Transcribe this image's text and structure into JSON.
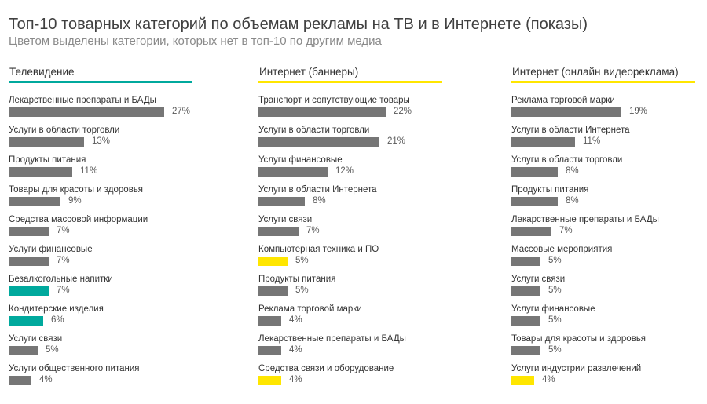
{
  "chart_data": {
    "type": "bar",
    "title": "Топ-10 товарных категорий по объемам рекламы на ТВ и в Интернете (показы)",
    "subtitle": "Цветом выделены категории, которых нет в топ-10 по другим медиа",
    "colors": {
      "default": "#767676"
    },
    "panels": [
      {
        "name": "Телевидение",
        "accent": "#00a99d",
        "categories": [
          "Лекарственные препараты и БАДы",
          "Услуги в области торговли",
          "Продукты питания",
          "Товары для красоты и здоровья",
          "Средства массовой информации",
          "Услуги финансовые",
          "Безалкогольные напитки",
          "Кондитерские изделия",
          "Услуги связи",
          "Услуги общественного питания"
        ],
        "values": [
          27,
          13,
          11,
          9,
          7,
          7,
          7,
          6,
          5,
          4
        ],
        "labels": [
          "27%",
          "13%",
          "11%",
          "9%",
          "7%",
          "7%",
          "7%",
          "6%",
          "5%",
          "4%"
        ],
        "highlighted": [
          false,
          false,
          false,
          false,
          false,
          false,
          true,
          true,
          false,
          false
        ]
      },
      {
        "name": "Интернет (баннеры)",
        "accent": "#ffe600",
        "categories": [
          "Транспорт и сопутствующие товары",
          "Услуги в области торговли",
          "Услуги финансовые",
          "Услуги в области Интернета",
          "Услуги связи",
          "Компьютерная техника и ПО",
          "Продукты питания",
          "Реклама торговой марки",
          "Лекарственные препараты и БАДы",
          "Средства связи и оборудование"
        ],
        "values": [
          22,
          21,
          12,
          8,
          7,
          5,
          5,
          4,
          4,
          4
        ],
        "labels": [
          "22%",
          "21%",
          "12%",
          "8%",
          "7%",
          "5%",
          "5%",
          "4%",
          "4%",
          "4%"
        ],
        "highlighted": [
          false,
          false,
          false,
          false,
          false,
          true,
          false,
          false,
          false,
          true
        ]
      },
      {
        "name": "Интернет (онлайн видеореклама)",
        "accent": "#ffe600",
        "categories": [
          "Реклама торговой марки",
          "Услуги в области Интернета",
          "Услуги в области торговли",
          "Продукты питания",
          "Лекарственные препараты и БАДы",
          "Массовые мероприятия",
          "Услуги связи",
          "Услуги финансовые",
          "Товары для красоты и здоровья",
          "Услуги индустрии развлечений"
        ],
        "values": [
          19,
          11,
          8,
          8,
          7,
          5,
          5,
          5,
          5,
          4
        ],
        "labels": [
          "19%",
          "11%",
          "8%",
          "8%",
          "7%",
          "5%",
          "5%",
          "5%",
          "5%",
          "4%"
        ],
        "highlighted": [
          false,
          false,
          false,
          false,
          false,
          false,
          false,
          false,
          false,
          true
        ]
      }
    ]
  }
}
